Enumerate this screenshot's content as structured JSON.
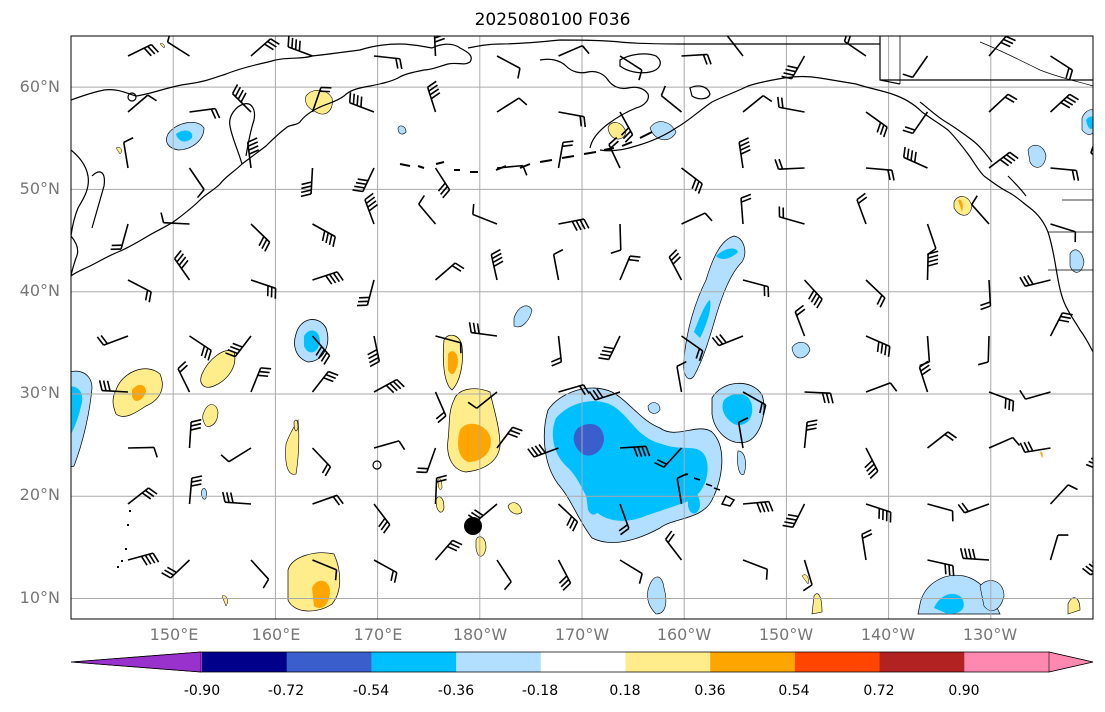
{
  "title": "2025080100 F036",
  "map": {
    "extent": {
      "lon_west": 140,
      "lon_east": 240,
      "lat_south": 8,
      "lat_north": 65
    },
    "lat_grid": [
      10,
      20,
      30,
      40,
      50,
      60
    ],
    "lat_labels": [
      "10°N",
      "20°N",
      "30°N",
      "40°N",
      "50°N",
      "60°N"
    ],
    "lon_grid": [
      150,
      160,
      170,
      180,
      190,
      200,
      210,
      220,
      230
    ],
    "lon_labels": [
      "150°E",
      "160°E",
      "170°E",
      "180°W",
      "170°W",
      "160°W",
      "150°W",
      "140°W",
      "130°W"
    ],
    "gridline_color": "#aaaaaa",
    "coastline_color": "#000000",
    "barb_color": "#000000"
  },
  "colorbar": {
    "levels": [
      "-0.90",
      "-0.72",
      "-0.54",
      "-0.36",
      "-0.18",
      "0.18",
      "0.36",
      "0.54",
      "0.72",
      "0.90"
    ],
    "colors": [
      "#9932cc",
      "#00008b",
      "#3a5fcd",
      "#00bfff",
      "#b2dfff",
      "#ffffff",
      "#ffec8b",
      "#ffa500",
      "#ff4500",
      "#b22222",
      "#ff88b0"
    ],
    "extend": "both"
  }
}
